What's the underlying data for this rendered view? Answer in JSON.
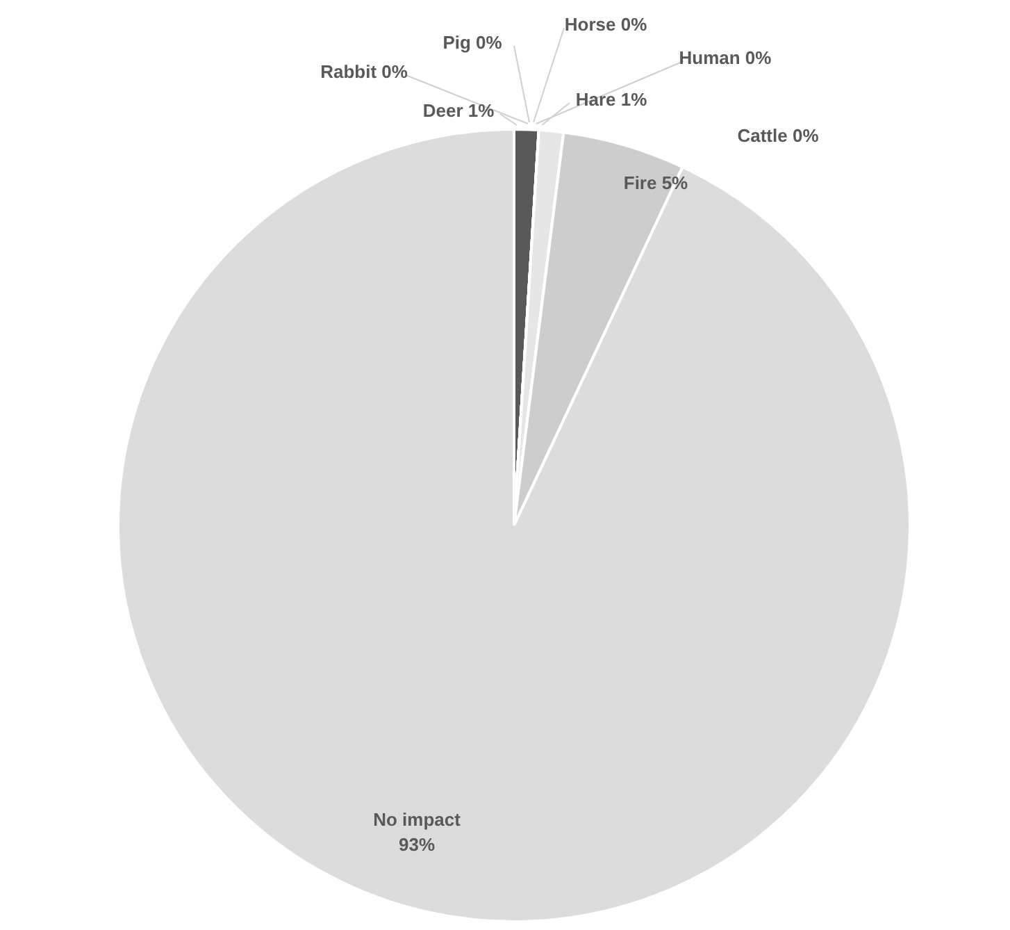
{
  "chart_data": {
    "type": "pie",
    "categories": [
      "Deer",
      "Rabbit",
      "Pig",
      "Horse",
      "Human",
      "Hare",
      "Cattle",
      "Fire",
      "No impact"
    ],
    "values": [
      1,
      0,
      0,
      0,
      0,
      1,
      0,
      5,
      93
    ],
    "value_labels": [
      "1%",
      "0%",
      "0%",
      "0%",
      "0%",
      "1%",
      "0%",
      "5%",
      "93%"
    ],
    "colors": [
      "#595959",
      "#e6e6e6",
      "#e6e6e6",
      "#e6e6e6",
      "#e6e6e6",
      "#e6e6e6",
      "#e6e6e6",
      "#cdcdcd",
      "#dcdcdc"
    ]
  }
}
